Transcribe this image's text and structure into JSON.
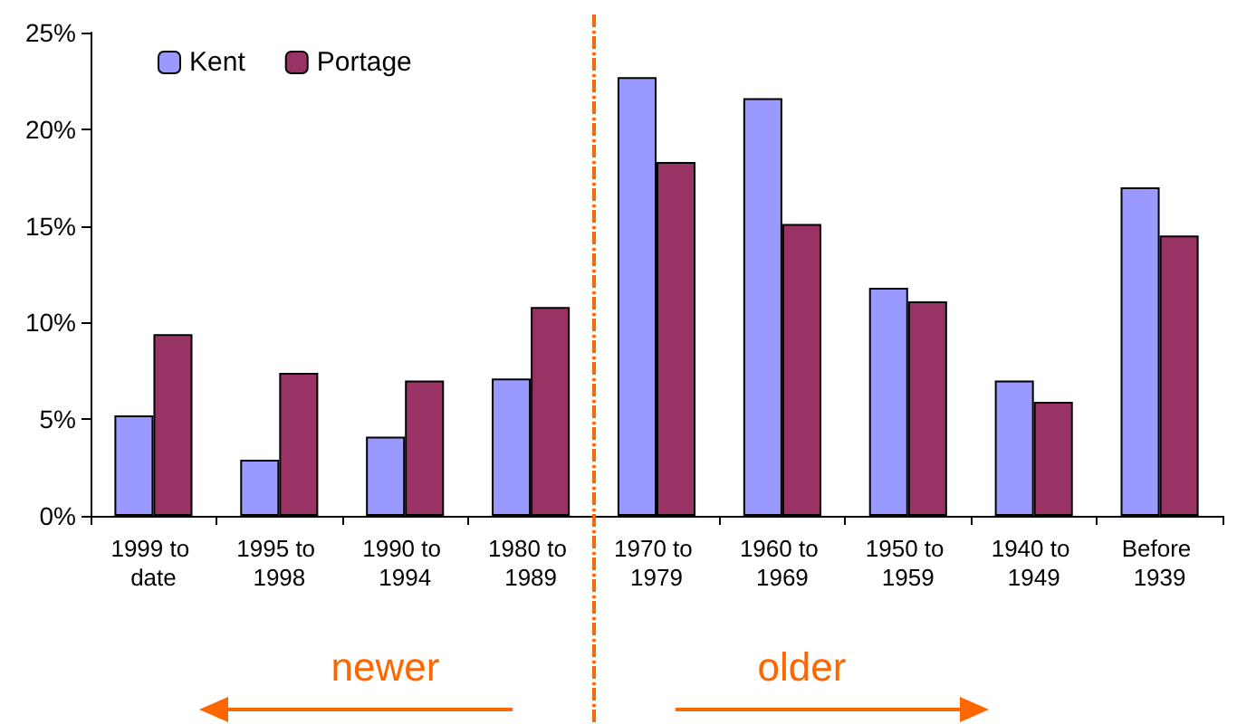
{
  "chart_data": {
    "type": "bar",
    "categories": [
      "1999 to date",
      "1995 to 1998",
      "1990 to 1994",
      "1980 to 1989",
      "1970 to 1979",
      "1960 to 1969",
      "1950 to 1959",
      "1940 to 1949",
      "Before 1939"
    ],
    "series": [
      {
        "name": "Kent",
        "color": "#9999ff",
        "values": [
          5.2,
          2.9,
          4.1,
          7.1,
          22.7,
          21.6,
          11.8,
          7.0,
          17.0
        ]
      },
      {
        "name": "Portage",
        "color": "#993366",
        "values": [
          9.4,
          7.4,
          7.0,
          10.8,
          18.3,
          15.1,
          11.1,
          5.9,
          14.5
        ]
      }
    ],
    "ylim": [
      0,
      25
    ],
    "yticks": [
      {
        "value": 0,
        "label": "0%"
      },
      {
        "value": 5,
        "label": "5%"
      },
      {
        "value": 10,
        "label": "10%"
      },
      {
        "value": 15,
        "label": "15%"
      },
      {
        "value": 20,
        "label": "20%"
      },
      {
        "value": 25,
        "label": "25%"
      }
    ],
    "grid": false,
    "legend": "top left",
    "annotations": [
      "newer",
      "older"
    ]
  }
}
